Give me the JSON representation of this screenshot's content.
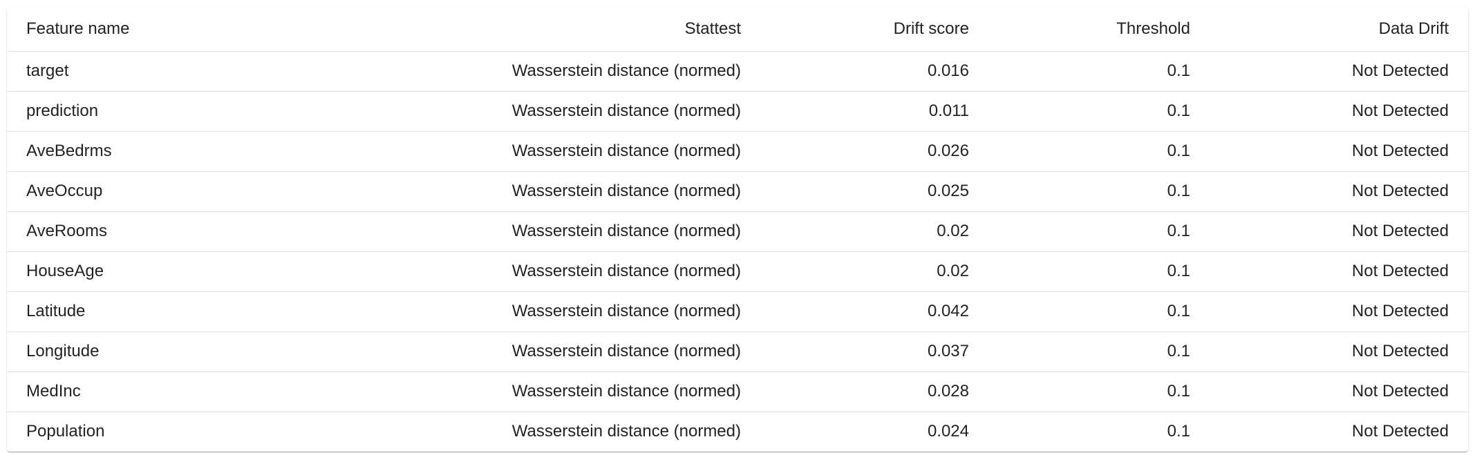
{
  "table": {
    "headers": {
      "feature": "Feature name",
      "stattest": "Stattest",
      "score": "Drift score",
      "threshold": "Threshold",
      "drift": "Data Drift"
    },
    "rows": [
      {
        "feature": "target",
        "stattest": "Wasserstein distance (normed)",
        "score": "0.016",
        "threshold": "0.1",
        "drift": "Not Detected"
      },
      {
        "feature": "prediction",
        "stattest": "Wasserstein distance (normed)",
        "score": "0.011",
        "threshold": "0.1",
        "drift": "Not Detected"
      },
      {
        "feature": "AveBedrms",
        "stattest": "Wasserstein distance (normed)",
        "score": "0.026",
        "threshold": "0.1",
        "drift": "Not Detected"
      },
      {
        "feature": "AveOccup",
        "stattest": "Wasserstein distance (normed)",
        "score": "0.025",
        "threshold": "0.1",
        "drift": "Not Detected"
      },
      {
        "feature": "AveRooms",
        "stattest": "Wasserstein distance (normed)",
        "score": "0.02",
        "threshold": "0.1",
        "drift": "Not Detected"
      },
      {
        "feature": "HouseAge",
        "stattest": "Wasserstein distance (normed)",
        "score": "0.02",
        "threshold": "0.1",
        "drift": "Not Detected"
      },
      {
        "feature": "Latitude",
        "stattest": "Wasserstein distance (normed)",
        "score": "0.042",
        "threshold": "0.1",
        "drift": "Not Detected"
      },
      {
        "feature": "Longitude",
        "stattest": "Wasserstein distance (normed)",
        "score": "0.037",
        "threshold": "0.1",
        "drift": "Not Detected"
      },
      {
        "feature": "MedInc",
        "stattest": "Wasserstein distance (normed)",
        "score": "0.028",
        "threshold": "0.1",
        "drift": "Not Detected"
      },
      {
        "feature": "Population",
        "stattest": "Wasserstein distance (normed)",
        "score": "0.024",
        "threshold": "0.1",
        "drift": "Not Detected"
      }
    ]
  }
}
